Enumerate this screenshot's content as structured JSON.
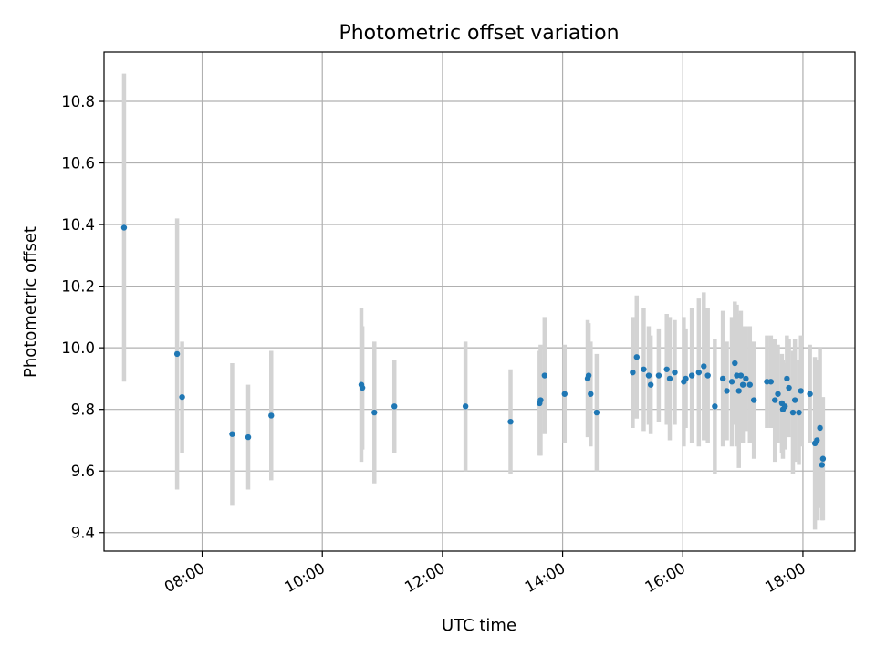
{
  "chart_data": {
    "type": "scatter",
    "title": "Photometric offset variation",
    "xlabel": "UTC time",
    "ylabel": "Photometric offset",
    "xlim": [
      "06:22",
      "18:52"
    ],
    "ylim": [
      9.34,
      10.96
    ],
    "grid": true,
    "x_ticks": [
      "08:00",
      "10:00",
      "12:00",
      "14:00",
      "16:00",
      "18:00"
    ],
    "y_ticks": [
      "9.4",
      "9.6",
      "9.8",
      "10.0",
      "10.2",
      "10.4",
      "10.6",
      "10.8"
    ],
    "colors": {
      "point": "#1f77b4",
      "errorbar": "#d3d3d3",
      "grid": "#b0b0b0"
    },
    "series": [
      {
        "x": [
          "06:42",
          "07:35",
          "07:40",
          "08:30",
          "08:46",
          "09:09",
          "10:39",
          "10:40",
          "10:52",
          "11:12",
          "12:23",
          "13:08",
          "13:37",
          "13:38",
          "13:42",
          "14:02",
          "14:25",
          "14:26",
          "14:28",
          "14:34",
          "15:10",
          "15:14",
          "15:21",
          "15:26",
          "15:28",
          "15:36",
          "15:44",
          "15:47",
          "15:52",
          "16:01",
          "16:03",
          "16:09",
          "16:16",
          "16:21",
          "16:25",
          "16:32",
          "16:40",
          "16:44",
          "16:49",
          "16:52",
          "16:54",
          "16:56",
          "16:58",
          "17:00",
          "17:03",
          "17:07",
          "17:11",
          "17:24",
          "17:28",
          "17:32",
          "17:35",
          "17:39",
          "17:40",
          "17:42",
          "17:44",
          "17:46",
          "17:50",
          "17:52",
          "17:56",
          "17:58",
          "18:07",
          "18:12",
          "18:14",
          "18:17",
          "18:19",
          "18:20"
        ],
        "y": [
          10.39,
          9.98,
          9.84,
          9.72,
          9.71,
          9.78,
          9.88,
          9.87,
          9.79,
          9.81,
          9.81,
          9.76,
          9.82,
          9.83,
          9.91,
          9.85,
          9.9,
          9.91,
          9.85,
          9.79,
          9.92,
          9.97,
          9.93,
          9.91,
          9.88,
          9.91,
          9.93,
          9.9,
          9.92,
          9.89,
          9.9,
          9.91,
          9.92,
          9.94,
          9.91,
          9.81,
          9.9,
          9.86,
          9.89,
          9.95,
          9.91,
          9.86,
          9.91,
          9.88,
          9.9,
          9.88,
          9.83,
          9.89,
          9.89,
          9.83,
          9.85,
          9.82,
          9.8,
          9.81,
          9.9,
          9.87,
          9.79,
          9.83,
          9.79,
          9.86,
          9.85,
          9.69,
          9.7,
          9.74,
          9.62,
          9.64
        ],
        "err": [
          0.5,
          0.44,
          0.18,
          0.23,
          0.17,
          0.21,
          0.25,
          0.2,
          0.23,
          0.15,
          0.21,
          0.17,
          0.17,
          0.18,
          0.19,
          0.16,
          0.19,
          0.17,
          0.17,
          0.19,
          0.18,
          0.2,
          0.2,
          0.16,
          0.16,
          0.15,
          0.18,
          0.2,
          0.17,
          0.21,
          0.16,
          0.22,
          0.24,
          0.24,
          0.22,
          0.22,
          0.22,
          0.16,
          0.21,
          0.2,
          0.23,
          0.25,
          0.21,
          0.19,
          0.17,
          0.19,
          0.19,
          0.15,
          0.15,
          0.2,
          0.16,
          0.16,
          0.16,
          0.14,
          0.14,
          0.16,
          0.2,
          0.2,
          0.17,
          0.18,
          0.16,
          0.28,
          0.26,
          0.26,
          0.18,
          0.2
        ]
      }
    ]
  }
}
